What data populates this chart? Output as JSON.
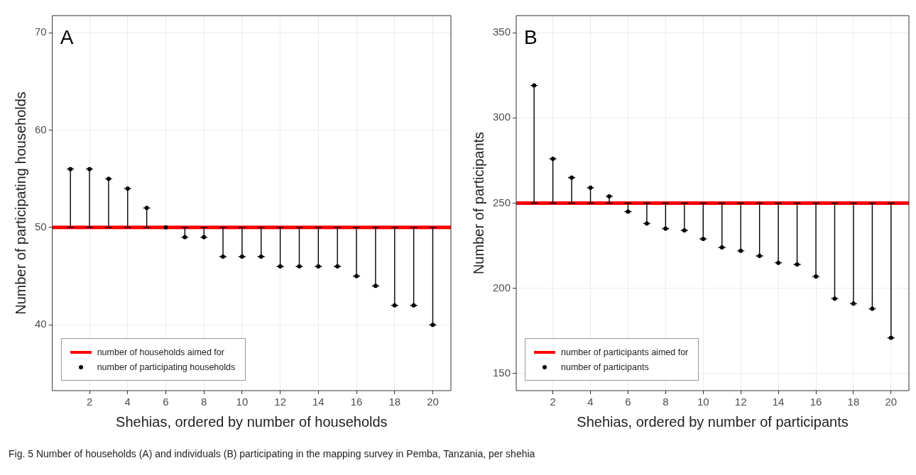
{
  "chart_data": [
    {
      "type": "scatter",
      "xlabel": "Shehias, ordered by number of households",
      "ylabel": "Number of participating households",
      "annotations": [
        "A",
        "Fig. 5  Number of households (A) and individuals (B) participating in the mapping survey in Pemba, Tanzania, per shehia"
      ],
      "x": [
        1,
        2,
        3,
        4,
        5,
        6,
        7,
        8,
        9,
        10,
        11,
        12,
        13,
        14,
        15,
        16,
        17,
        18,
        19,
        20
      ],
      "series": [
        {
          "name": "number of participating households",
          "color": "#000000",
          "values": [
            56,
            56,
            55,
            54,
            52,
            50,
            49,
            49,
            47,
            47,
            47,
            46,
            46,
            46,
            46,
            45,
            44,
            42,
            42,
            40
          ],
          "errors": [
            [
              50,
              56
            ],
            [
              50,
              56
            ],
            [
              50,
              55
            ],
            [
              50,
              54
            ],
            [
              50,
              52
            ],
            null,
            [
              49,
              50
            ],
            [
              49,
              50
            ],
            [
              47,
              50
            ],
            [
              47,
              50
            ],
            [
              47,
              50
            ],
            [
              46,
              50
            ],
            [
              46,
              50
            ],
            [
              46,
              50
            ],
            [
              46,
              50
            ],
            [
              45,
              50
            ],
            [
              44,
              50
            ],
            [
              42,
              50
            ],
            [
              42,
              50
            ],
            [
              40,
              50
            ]
          ]
        }
      ],
      "ref_lines": [
        {
          "axis": "y",
          "value": 50,
          "label": "number of households aimed for",
          "color": "#ff0000"
        }
      ],
      "xlim": [
        0.05,
        20.95
      ],
      "xticks": [
        2,
        4,
        6,
        8,
        10,
        12,
        14,
        16,
        18,
        20
      ],
      "ylim": [
        33.25,
        71.75
      ],
      "yticks": [
        40,
        50,
        60,
        70
      ],
      "grid": true,
      "legend": "bottom left",
      "marker": "circle"
    },
    {
      "type": "scatter",
      "xlabel": "Shehias, ordered by number of participants",
      "ylabel": "Number of participants",
      "annotations": [
        "B"
      ],
      "x": [
        1,
        2,
        3,
        4,
        5,
        6,
        7,
        8,
        9,
        10,
        11,
        12,
        13,
        14,
        15,
        16,
        17,
        18,
        19,
        20
      ],
      "series": [
        {
          "name": "number of participants",
          "color": "#000000",
          "values": [
            319,
            276,
            265,
            259,
            254,
            245,
            238,
            235,
            234,
            229,
            224,
            222,
            219,
            215,
            214,
            207,
            194,
            191,
            188,
            171
          ],
          "errors": [
            [
              250,
              319
            ],
            [
              250,
              276
            ],
            [
              250,
              265
            ],
            [
              250,
              259
            ],
            [
              250,
              254
            ],
            [
              245,
              250
            ],
            [
              238,
              250
            ],
            [
              235,
              250
            ],
            [
              234,
              250
            ],
            [
              229,
              250
            ],
            [
              224,
              250
            ],
            [
              222,
              250
            ],
            [
              219,
              250
            ],
            [
              215,
              250
            ],
            [
              214,
              250
            ],
            [
              207,
              250
            ],
            [
              194,
              250
            ],
            [
              191,
              250
            ],
            [
              188,
              250
            ],
            [
              171,
              250
            ]
          ]
        }
      ],
      "ref_lines": [
        {
          "axis": "y",
          "value": 250,
          "label": "number of participants aimed for",
          "color": "#ff0000"
        }
      ],
      "xlim": [
        0.05,
        20.95
      ],
      "xticks": [
        2,
        4,
        6,
        8,
        10,
        12,
        14,
        16,
        18,
        20
      ],
      "ylim": [
        140,
        360
      ],
      "yticks": [
        150,
        200,
        250,
        300,
        350
      ],
      "grid": true,
      "legend": "bottom left",
      "marker": "circle"
    }
  ]
}
